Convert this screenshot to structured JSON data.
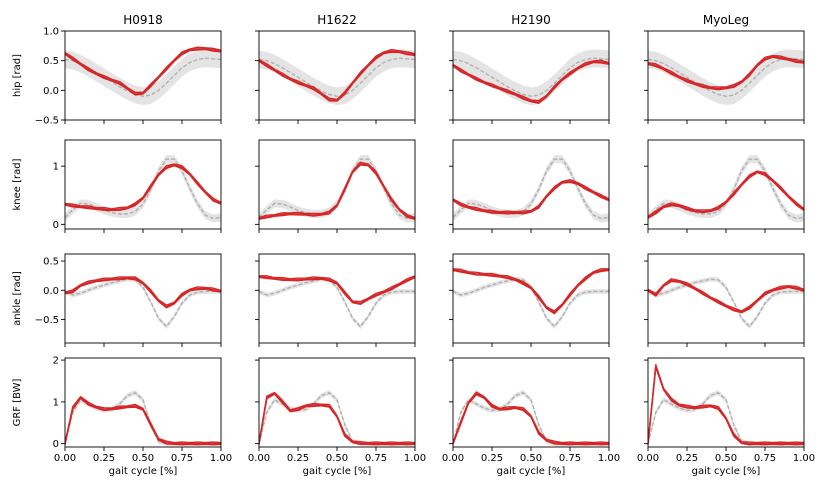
{
  "colors": {
    "model": "#d62728",
    "reference": "#b0b0b0"
  },
  "column_titles": [
    "H0918",
    "H1622",
    "H2190",
    "MyoLeg"
  ],
  "row_labels": [
    "hip [rad]",
    "knee [rad]",
    "ankle [rad]",
    "GRF [BW]"
  ],
  "xlabel": "gait cycle [%]",
  "x_ticks": [
    "0.00",
    "0.25",
    "0.50",
    "0.75",
    "1.00"
  ],
  "rows": [
    {
      "key": "hip",
      "ylim": [
        -0.5,
        1.0
      ],
      "yticks": [
        -0.5,
        0.0,
        0.5,
        1.0
      ],
      "ytick_labels": [
        "−0.5",
        "0.0",
        "0.5",
        "1.0"
      ]
    },
    {
      "key": "knee",
      "ylim": [
        -0.08,
        1.45
      ],
      "yticks": [
        0,
        1
      ],
      "ytick_labels": [
        "0",
        "1"
      ]
    },
    {
      "key": "ankle",
      "ylim": [
        -0.9,
        0.62
      ],
      "yticks": [
        -0.5,
        0.0,
        0.5
      ],
      "ytick_labels": [
        "−0.5",
        "0.0",
        "0.5"
      ]
    },
    {
      "key": "grf",
      "ylim": [
        -0.08,
        2.05
      ],
      "yticks": [
        0,
        1,
        2
      ],
      "ytick_labels": [
        "0",
        "1",
        "2"
      ]
    }
  ],
  "chart_data": {
    "type": "line",
    "x": [
      0.0,
      0.05,
      0.1,
      0.15,
      0.2,
      0.25,
      0.3,
      0.35,
      0.4,
      0.45,
      0.5,
      0.55,
      0.6,
      0.65,
      0.7,
      0.75,
      0.8,
      0.85,
      0.9,
      0.95,
      1.0
    ],
    "reference": {
      "hip": {
        "mean": [
          0.52,
          0.5,
          0.45,
          0.38,
          0.3,
          0.22,
          0.14,
          0.06,
          -0.01,
          -0.07,
          -0.1,
          -0.08,
          0.0,
          0.12,
          0.25,
          0.38,
          0.47,
          0.52,
          0.54,
          0.53,
          0.52
        ],
        "band": 0.15
      },
      "knee": {
        "mean": [
          0.12,
          0.25,
          0.36,
          0.35,
          0.3,
          0.24,
          0.2,
          0.18,
          0.18,
          0.22,
          0.35,
          0.6,
          0.92,
          1.12,
          1.12,
          0.92,
          0.62,
          0.35,
          0.16,
          0.1,
          0.12
        ],
        "band": 0.07
      },
      "ankle": {
        "mean": [
          -0.02,
          -0.08,
          -0.05,
          0.0,
          0.05,
          0.09,
          0.13,
          0.16,
          0.19,
          0.18,
          0.05,
          -0.2,
          -0.48,
          -0.62,
          -0.45,
          -0.22,
          -0.08,
          -0.03,
          -0.02,
          -0.02,
          -0.02
        ],
        "band": 0.04
      },
      "grf": {
        "mean": [
          0.0,
          0.75,
          1.05,
          0.95,
          0.85,
          0.8,
          0.82,
          0.95,
          1.15,
          1.22,
          1.05,
          0.45,
          0.05,
          0.0,
          0.0,
          0.0,
          0.0,
          0.0,
          0.0,
          0.0,
          0.0
        ],
        "band": 0.06
      }
    },
    "panels": [
      {
        "title": "H0918",
        "hip": [
          0.62,
          0.53,
          0.44,
          0.35,
          0.28,
          0.22,
          0.17,
          0.12,
          0.03,
          -0.06,
          -0.05,
          0.08,
          0.22,
          0.36,
          0.5,
          0.62,
          0.68,
          0.7,
          0.7,
          0.68,
          0.66
        ],
        "knee": [
          0.34,
          0.32,
          0.3,
          0.29,
          0.27,
          0.26,
          0.25,
          0.26,
          0.28,
          0.34,
          0.45,
          0.65,
          0.85,
          0.98,
          1.02,
          0.98,
          0.86,
          0.7,
          0.55,
          0.42,
          0.36
        ],
        "ankle": [
          -0.05,
          -0.02,
          0.08,
          0.13,
          0.16,
          0.18,
          0.19,
          0.2,
          0.21,
          0.2,
          0.12,
          -0.02,
          -0.18,
          -0.28,
          -0.22,
          -0.08,
          0.0,
          0.03,
          0.03,
          0.01,
          -0.02
        ],
        "grf": [
          0.0,
          0.85,
          1.1,
          0.95,
          0.87,
          0.82,
          0.83,
          0.86,
          0.88,
          0.9,
          0.82,
          0.45,
          0.1,
          0.02,
          0.0,
          0.0,
          0.0,
          0.0,
          0.0,
          0.0,
          0.0
        ]
      },
      {
        "title": "H1622",
        "hip": [
          0.5,
          0.42,
          0.34,
          0.26,
          0.19,
          0.13,
          0.08,
          0.03,
          -0.06,
          -0.16,
          -0.17,
          -0.05,
          0.12,
          0.28,
          0.42,
          0.55,
          0.63,
          0.66,
          0.65,
          0.62,
          0.6
        ],
        "knee": [
          0.1,
          0.13,
          0.15,
          0.17,
          0.18,
          0.18,
          0.17,
          0.16,
          0.17,
          0.2,
          0.32,
          0.6,
          0.9,
          1.04,
          1.02,
          0.88,
          0.65,
          0.42,
          0.25,
          0.14,
          0.1
        ],
        "ankle": [
          0.23,
          0.22,
          0.2,
          0.19,
          0.18,
          0.18,
          0.19,
          0.2,
          0.2,
          0.18,
          0.12,
          -0.05,
          -0.2,
          -0.22,
          -0.15,
          -0.08,
          -0.03,
          0.03,
          0.1,
          0.17,
          0.23
        ],
        "grf": [
          0.0,
          1.1,
          1.2,
          1.0,
          0.78,
          0.82,
          0.9,
          0.92,
          0.92,
          0.9,
          0.65,
          0.2,
          0.04,
          0.01,
          0.0,
          0.0,
          0.0,
          0.0,
          0.0,
          0.0,
          0.0
        ]
      },
      {
        "title": "H2190",
        "hip": [
          0.42,
          0.33,
          0.26,
          0.19,
          0.13,
          0.08,
          0.03,
          -0.02,
          -0.07,
          -0.13,
          -0.18,
          -0.2,
          -0.1,
          0.05,
          0.18,
          0.28,
          0.37,
          0.44,
          0.48,
          0.48,
          0.45
        ],
        "knee": [
          0.42,
          0.34,
          0.29,
          0.26,
          0.23,
          0.21,
          0.2,
          0.2,
          0.2,
          0.2,
          0.22,
          0.3,
          0.48,
          0.62,
          0.72,
          0.74,
          0.7,
          0.62,
          0.55,
          0.48,
          0.42
        ],
        "ankle": [
          0.35,
          0.33,
          0.3,
          0.28,
          0.27,
          0.26,
          0.24,
          0.22,
          0.18,
          0.12,
          0.04,
          -0.12,
          -0.3,
          -0.38,
          -0.25,
          -0.08,
          0.08,
          0.2,
          0.3,
          0.34,
          0.35
        ],
        "grf": [
          0.0,
          0.5,
          0.98,
          1.2,
          1.1,
          0.9,
          0.82,
          0.84,
          0.86,
          0.82,
          0.65,
          0.25,
          0.08,
          0.02,
          0.0,
          0.0,
          0.0,
          0.0,
          0.0,
          0.0,
          0.0
        ]
      },
      {
        "title": "MyoLeg",
        "hip": [
          0.45,
          0.42,
          0.36,
          0.29,
          0.22,
          0.16,
          0.11,
          0.07,
          0.04,
          0.03,
          0.04,
          0.07,
          0.14,
          0.26,
          0.42,
          0.53,
          0.57,
          0.55,
          0.52,
          0.49,
          0.47
        ],
        "knee": [
          0.12,
          0.2,
          0.3,
          0.34,
          0.32,
          0.27,
          0.23,
          0.22,
          0.23,
          0.28,
          0.38,
          0.52,
          0.68,
          0.82,
          0.9,
          0.86,
          0.75,
          0.62,
          0.48,
          0.35,
          0.25
        ],
        "ankle": [
          0.0,
          -0.08,
          0.08,
          0.17,
          0.15,
          0.1,
          0.03,
          -0.05,
          -0.13,
          -0.2,
          -0.27,
          -0.33,
          -0.37,
          -0.3,
          -0.18,
          -0.06,
          0.0,
          0.04,
          0.06,
          0.04,
          0.0
        ],
        "grf": [
          0.0,
          1.85,
          1.3,
          1.05,
          0.92,
          0.88,
          0.86,
          0.88,
          0.9,
          0.85,
          0.6,
          0.2,
          0.02,
          0.0,
          0.0,
          0.0,
          0.0,
          0.0,
          0.0,
          0.0,
          0.0
        ]
      }
    ]
  }
}
